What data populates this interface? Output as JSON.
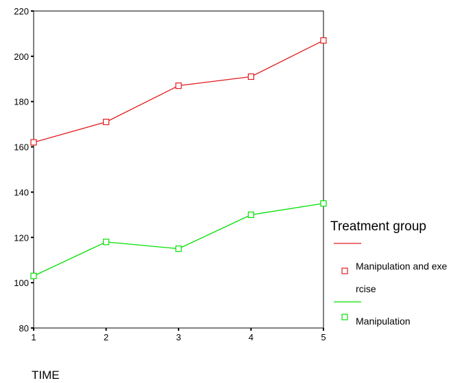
{
  "chart_data": {
    "type": "line",
    "title": "",
    "xlabel": "TIME",
    "ylabel": "",
    "x": [
      1,
      2,
      3,
      4,
      5
    ],
    "xticks": [
      "1",
      "2",
      "3",
      "4",
      "5"
    ],
    "ylim": [
      80,
      220
    ],
    "yticks": [
      80,
      100,
      120,
      140,
      160,
      180,
      200,
      220
    ],
    "grid": false,
    "legend": {
      "title": "Treatment group",
      "placement": "right",
      "entries": [
        {
          "lines": [
            "Manipulation and exe",
            "rcise"
          ]
        },
        {
          "lines": [
            "Manipulation"
          ]
        }
      ]
    },
    "series": [
      {
        "name": "Manipulation and exercise",
        "color": "#e31a1c",
        "values": [
          162,
          171,
          187,
          191,
          207
        ]
      },
      {
        "name": "Manipulation",
        "color": "#00e000",
        "values": [
          103,
          118,
          115,
          130,
          135
        ]
      }
    ]
  }
}
